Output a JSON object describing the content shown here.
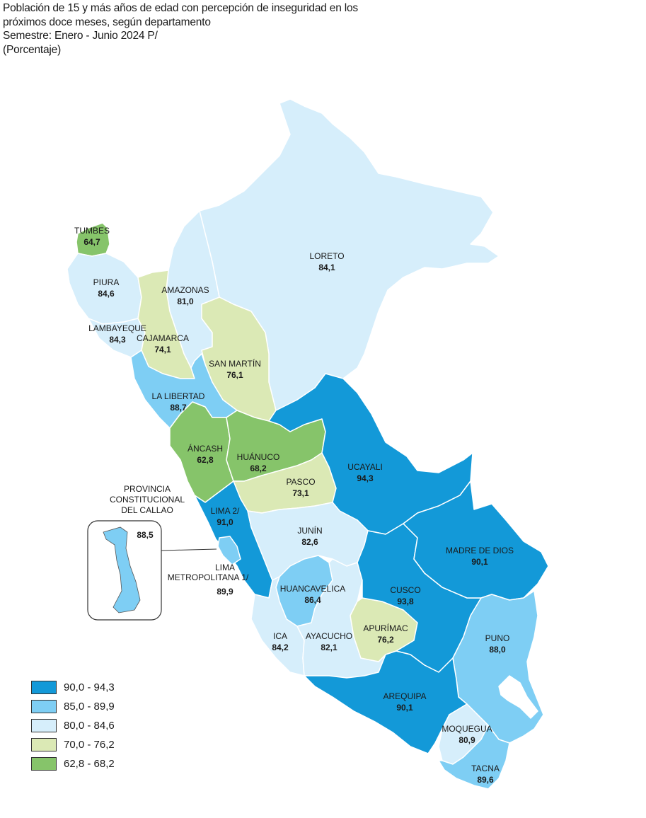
{
  "title": {
    "line1": "Población de 15 y más años de edad con percepción de inseguridad en los",
    "line2": "próximos doce meses, según departamento",
    "line3": "Semestre: Enero - Junio 2024 P/",
    "line4": "(Porcentaje)"
  },
  "colors": {
    "c1": "#1399d8",
    "c2": "#7ecef4",
    "c3": "#d6eefb",
    "c4": "#dbe9b5",
    "c5": "#86c46a",
    "border": "#ffffff",
    "outline": "#444444"
  },
  "legend": [
    {
      "label": "90,0 - 94,3",
      "color": "#1399d8"
    },
    {
      "label": "85,0 - 89,9",
      "color": "#7ecef4"
    },
    {
      "label": "80,0 - 84,6",
      "color": "#d6eefb"
    },
    {
      "label": "70,0 - 76,2",
      "color": "#dbe9b5"
    },
    {
      "label": "62,8 - 68,2",
      "color": "#86c46a"
    }
  ],
  "inset": {
    "title1": "PROVINCIA",
    "title2": "CONSTITUCIONAL",
    "title3": "DEL CALLAO",
    "value": "88,5"
  },
  "regions": {
    "tumbes": {
      "name": "TUMBES",
      "value": "64,7"
    },
    "piura": {
      "name": "PIURA",
      "value": "84,6"
    },
    "lambayeque": {
      "name": "LAMBAYEQUE",
      "value": "84,3"
    },
    "cajamarca": {
      "name": "CAJAMARCA",
      "value": "74,1"
    },
    "amazonas": {
      "name": "AMAZONAS",
      "value": "81,0"
    },
    "loreto": {
      "name": "LORETO",
      "value": "84,1"
    },
    "sanmartin": {
      "name": "SAN MARTÍN",
      "value": "76,1"
    },
    "lalibertad": {
      "name": "LA LIBERTAD",
      "value": "88,7"
    },
    "ancash": {
      "name": "ÁNCASH",
      "value": "62,8"
    },
    "huanuco": {
      "name": "HUÁNUCO",
      "value": "68,2"
    },
    "ucayali": {
      "name": "UCAYALI",
      "value": "94,3"
    },
    "pasco": {
      "name": "PASCO",
      "value": "73,1"
    },
    "lima": {
      "name": "LIMA 2/",
      "value": "91,0"
    },
    "limamet1": {
      "name": "LIMA",
      "name2": "METROPOLITANA 1/",
      "value": "89,9"
    },
    "junin": {
      "name": "JUNÍN",
      "value": "82,6"
    },
    "madrededios": {
      "name": "MADRE DE DIOS",
      "value": "90,1"
    },
    "huancavelica": {
      "name": "HUANCAVELICA",
      "value": "86,4"
    },
    "cusco": {
      "name": "CUSCO",
      "value": "93,8"
    },
    "ica": {
      "name": "ICA",
      "value": "84,2"
    },
    "ayacucho": {
      "name": "AYACUCHO",
      "value": "82,1"
    },
    "apurimac": {
      "name": "APURÍMAC",
      "value": "76,2"
    },
    "puno": {
      "name": "PUNO",
      "value": "88,0"
    },
    "arequipa": {
      "name": "AREQUIPA",
      "value": "90,1"
    },
    "moquegua": {
      "name": "MOQUEGUA",
      "value": "80,9"
    },
    "tacna": {
      "name": "TACNA",
      "value": "89,6"
    }
  }
}
